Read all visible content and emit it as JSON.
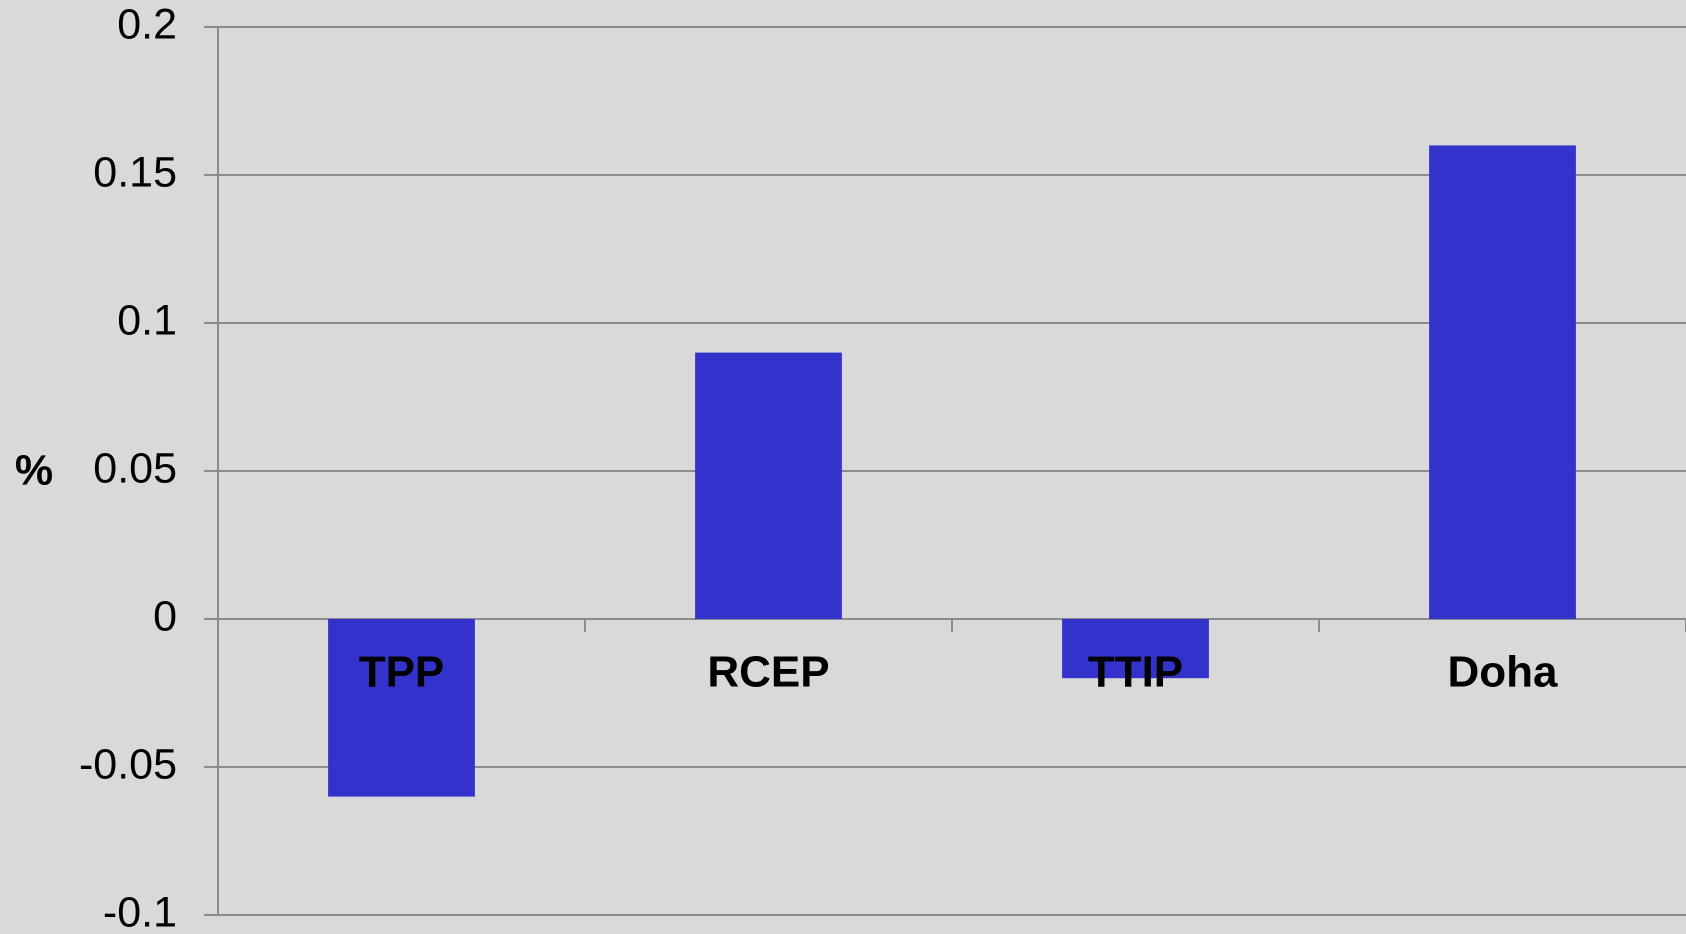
{
  "chart_data": {
    "type": "bar",
    "ylabel": "%",
    "categories": [
      "TPP",
      "RCEP",
      "TTIP",
      "Doha"
    ],
    "values": [
      -0.06,
      0.09,
      -0.02,
      0.16
    ],
    "color": "#3333cc",
    "ylim": [
      -0.1,
      0.2
    ],
    "yticks": [
      -0.1,
      -0.05,
      0,
      0.05,
      0.1,
      0.15,
      0.2
    ],
    "grid": true
  }
}
